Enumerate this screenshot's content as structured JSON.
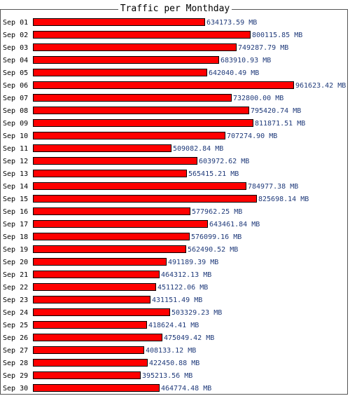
{
  "chart_data": {
    "type": "bar",
    "orientation": "horizontal",
    "title": "Traffic per Monthday",
    "unit": "MB",
    "bar_color": "#ff0000",
    "label_color": "#1f3a7a",
    "categories": [
      "Sep 01",
      "Sep 02",
      "Sep 03",
      "Sep 04",
      "Sep 05",
      "Sep 06",
      "Sep 07",
      "Sep 08",
      "Sep 09",
      "Sep 10",
      "Sep 11",
      "Sep 12",
      "Sep 13",
      "Sep 14",
      "Sep 15",
      "Sep 16",
      "Sep 17",
      "Sep 18",
      "Sep 19",
      "Sep 20",
      "Sep 21",
      "Sep 22",
      "Sep 23",
      "Sep 24",
      "Sep 25",
      "Sep 26",
      "Sep 27",
      "Sep 28",
      "Sep 29",
      "Sep 30"
    ],
    "values": [
      634173.59,
      800115.85,
      749287.79,
      683910.93,
      642040.49,
      961623.42,
      732800.0,
      795420.74,
      811871.51,
      707274.9,
      509082.84,
      603972.62,
      565415.21,
      784977.38,
      825698.14,
      577962.25,
      643461.84,
      576099.16,
      562490.52,
      491189.39,
      464312.13,
      451122.06,
      431151.49,
      503329.23,
      418624.41,
      475049.42,
      408133.12,
      422450.88,
      395213.56,
      464774.48
    ],
    "value_labels": [
      "634173.59 MB",
      "800115.85 MB",
      "749287.79 MB",
      "683910.93 MB",
      "642040.49 MB",
      "961623.42 MB",
      "732800.00 MB",
      "795420.74 MB",
      "811871.51 MB",
      "707274.90 MB",
      "509082.84 MB",
      "603972.62 MB",
      "565415.21 MB",
      "784977.38 MB",
      "825698.14 MB",
      "577962.25 MB",
      "643461.84 MB",
      "576099.16 MB",
      "562490.52 MB",
      "491189.39 MB",
      "464312.13 MB",
      "451122.06 MB",
      "431151.49 MB",
      "503329.23 MB",
      "418624.41 MB",
      "475049.42 MB",
      "408133.12 MB",
      "422450.88 MB",
      "395213.56 MB",
      "464774.48 MB"
    ],
    "grid": false,
    "legend": "none"
  }
}
